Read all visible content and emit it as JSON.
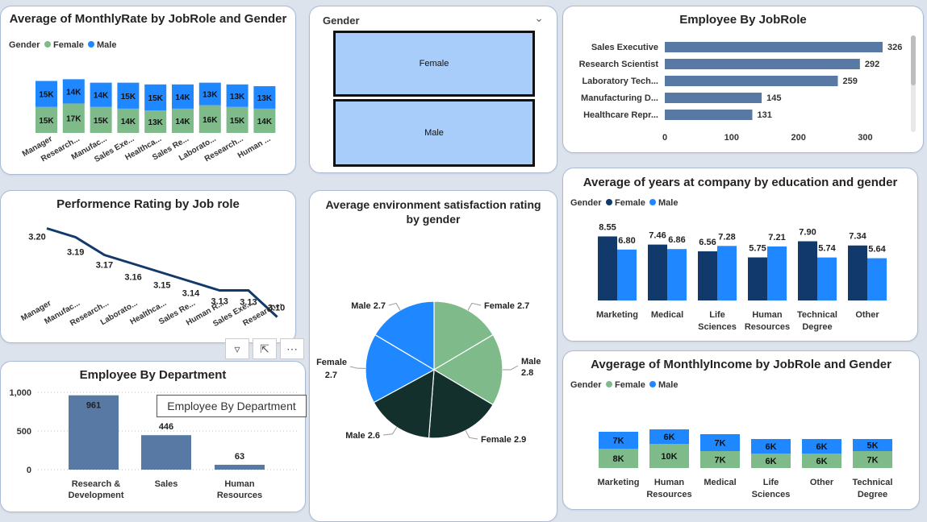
{
  "colors": {
    "female_green": "#7fbb8a",
    "male_blue": "#1f87ff",
    "navy": "#12396b",
    "steel": "#5779a4",
    "pie_dark": "#13302c"
  },
  "legend": {
    "title": "Gender",
    "female": "Female",
    "male": "Male"
  },
  "card1": {
    "title": "Average of MonthlyRate by JobRole and Gender",
    "chart_data": {
      "type": "bar",
      "stacked": true,
      "categories": [
        "Manager",
        "Research...",
        "Manufac...",
        "Sales Exe...",
        "Healthca...",
        "Sales Re...",
        "Laborato...",
        "Research...",
        "Human ..."
      ],
      "series": [
        {
          "name": "Female",
          "values": [
            15,
            17,
            15,
            14,
            13,
            14,
            16,
            15,
            14
          ],
          "labels": [
            "15K",
            "17K",
            "15K",
            "14K",
            "13K",
            "14K",
            "16K",
            "15K",
            "14K"
          ]
        },
        {
          "name": "Male",
          "values": [
            15,
            14,
            14,
            15,
            15,
            14,
            13,
            13,
            13
          ],
          "labels": [
            "15K",
            "14K",
            "14K",
            "15K",
            "15K",
            "14K",
            "13K",
            "13K",
            "13K"
          ]
        }
      ]
    }
  },
  "slicer": {
    "title": "Gender",
    "options": [
      "Female",
      "Male"
    ]
  },
  "card3": {
    "title": "Employee By JobRole",
    "chart_data": {
      "type": "bar",
      "orientation": "horizontal",
      "categories": [
        "Sales Executive",
        "Research Scientist",
        "Laboratory Tech...",
        "Manufacturing D...",
        "Healthcare Repr..."
      ],
      "values": [
        326,
        292,
        259,
        145,
        131
      ],
      "xticks": [
        "0",
        "100",
        "200",
        "300"
      ],
      "xlim": [
        0,
        340
      ]
    }
  },
  "card4": {
    "title": "Performence Rating by Job role",
    "chart_data": {
      "type": "line",
      "categories": [
        "Manager",
        "Manufac...",
        "Research...",
        "Laborato...",
        "Healthca...",
        "Sales Re...",
        "Human R...",
        "Sales Exe...",
        "Research..."
      ],
      "values": [
        3.2,
        3.19,
        3.17,
        3.16,
        3.15,
        3.14,
        3.13,
        3.13,
        3.1
      ],
      "labels": [
        "3.20",
        "3.19",
        "3.17",
        "3.16",
        "3.15",
        "3.14",
        "3.13",
        "3.13",
        "3.10"
      ]
    }
  },
  "card5": {
    "title": "Average environment satisfaction rating by gender",
    "title_lines": [
      "Average environment satisfaction rating",
      "by gender"
    ],
    "chart_data": {
      "type": "pie",
      "slices": [
        {
          "label": "Female",
          "value": 2.7,
          "color": "#7fbb8a",
          "text": "Female 2.7"
        },
        {
          "label": "Male",
          "value": 2.8,
          "color": "#7fbb8a",
          "text": "Male 2.8"
        },
        {
          "label": "Female",
          "value": 2.9,
          "color": "#13302c",
          "text": "Female 2.9"
        },
        {
          "label": "Male",
          "value": 2.6,
          "color": "#13302c",
          "text": "Male 2.6"
        },
        {
          "label": "Female",
          "value": 2.7,
          "color": "#1f87ff",
          "text": "Female 2.7"
        },
        {
          "label": "Male",
          "value": 2.7,
          "color": "#1f87ff",
          "text": "Male 2.7"
        }
      ]
    }
  },
  "card6": {
    "title": "Average of years at company by education and gender",
    "chart_data": {
      "type": "bar",
      "grouped": true,
      "categories": [
        "Marketing",
        "Medical",
        "Life Sciences",
        "Human Resources",
        "Technical Degree",
        "Other"
      ],
      "series": [
        {
          "name": "Female",
          "values": [
            8.55,
            7.46,
            6.56,
            5.75,
            7.9,
            7.34
          ],
          "labels": [
            "8.55",
            "7.46",
            "6.56",
            "5.75",
            "7.90",
            "7.34"
          ]
        },
        {
          "name": "Male",
          "values": [
            6.8,
            6.86,
            7.28,
            7.21,
            5.74,
            5.64
          ],
          "labels": [
            "6.80",
            "6.86",
            "7.28",
            "7.21",
            "5.74",
            "5.64"
          ]
        }
      ]
    }
  },
  "card7": {
    "title": "Employee By Department",
    "tooltip": "Employee By Department",
    "chart_data": {
      "type": "bar",
      "categories": [
        "Research & Development",
        "Sales",
        "Human Resources"
      ],
      "values": [
        961,
        446,
        63
      ],
      "yticks": [
        "1,000",
        "500",
        "0"
      ],
      "ylim": [
        0,
        1000
      ]
    }
  },
  "card8": {
    "title": "Avgerage of MonthlyIncome by JobRole and Gender",
    "chart_data": {
      "type": "bar",
      "stacked": true,
      "categories": [
        "Marketing",
        "Human Resources",
        "Medical",
        "Life Sciences",
        "Other",
        "Technical Degree"
      ],
      "series": [
        {
          "name": "Female",
          "values": [
            8,
            10,
            7,
            6,
            6,
            7
          ],
          "labels": [
            "8K",
            "10K",
            "7K",
            "6K",
            "6K",
            "7K"
          ]
        },
        {
          "name": "Male",
          "values": [
            7,
            6,
            7,
            6,
            6,
            5
          ],
          "labels": [
            "7K",
            "6K",
            "7K",
            "6K",
            "6K",
            "5K"
          ]
        }
      ]
    }
  }
}
